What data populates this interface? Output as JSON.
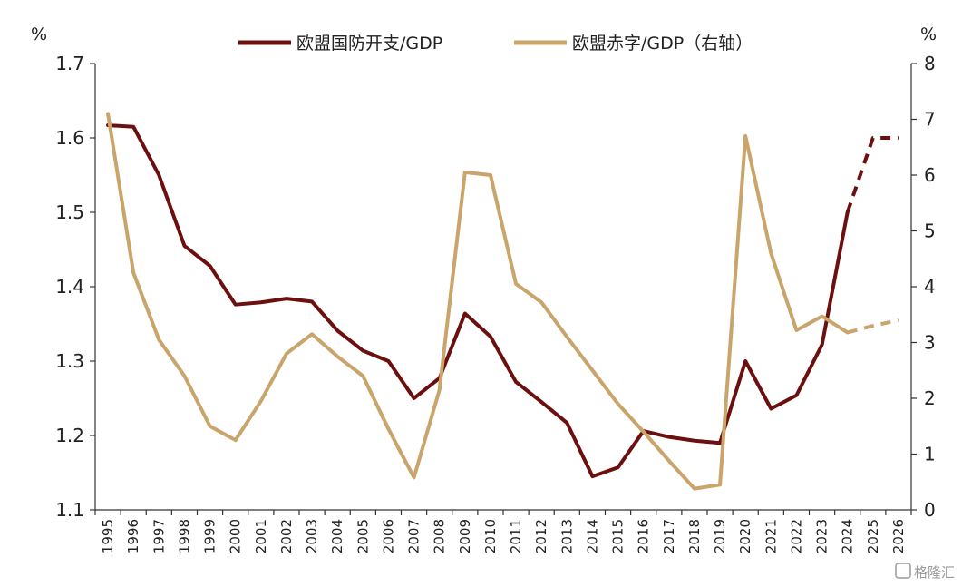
{
  "chart_data": {
    "type": "line",
    "left_unit": "%",
    "right_unit": "%",
    "x": [
      "1995",
      "1996",
      "1997",
      "1998",
      "1999",
      "2000",
      "2001",
      "2002",
      "2003",
      "2004",
      "2005",
      "2006",
      "2007",
      "2008",
      "2009",
      "2010",
      "2011",
      "2012",
      "2013",
      "2014",
      "2015",
      "2016",
      "2017",
      "2018",
      "2019",
      "2020",
      "2021",
      "2022",
      "2023",
      "2024",
      "2025",
      "2026"
    ],
    "y_left_lim": [
      1.1,
      1.7
    ],
    "y_left_ticks": [
      "1.1",
      "1.2",
      "1.3",
      "1.4",
      "1.5",
      "1.6",
      "1.7"
    ],
    "y_right_lim": [
      0,
      8
    ],
    "y_right_ticks": [
      "0",
      "1",
      "2",
      "3",
      "4",
      "5",
      "6",
      "7",
      "8"
    ],
    "series": [
      {
        "name": "欧盟国防开支/GDP",
        "axis": "left",
        "color": "#6b0f0f",
        "values": [
          1.617,
          1.615,
          1.55,
          1.455,
          1.428,
          1.376,
          1.379,
          1.384,
          1.38,
          1.341,
          1.314,
          1.3,
          1.25,
          1.277,
          1.364,
          1.333,
          1.272,
          1.245,
          1.217,
          1.145,
          1.157,
          1.206,
          1.198,
          1.193,
          1.19,
          1.3,
          1.236,
          1.254,
          1.322,
          1.5,
          1.6,
          1.6
        ],
        "dashed_from": "2024"
      },
      {
        "name": "欧盟赤字/GDP（右轴）",
        "axis": "right",
        "color": "#c9a56b",
        "values": [
          7.1,
          4.25,
          3.05,
          2.4,
          1.5,
          1.25,
          1.95,
          2.8,
          3.15,
          2.75,
          2.4,
          1.45,
          0.58,
          2.15,
          6.05,
          6.0,
          4.05,
          3.72,
          3.1,
          2.5,
          1.9,
          1.4,
          0.88,
          0.38,
          0.45,
          6.7,
          4.6,
          3.22,
          3.47,
          3.18,
          3.3,
          3.4
        ],
        "dashed_from": "2024"
      }
    ],
    "legend_position": "top-center",
    "grid": false
  },
  "watermark": "格隆汇"
}
